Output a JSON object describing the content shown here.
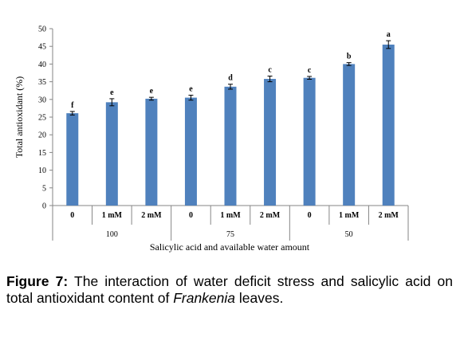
{
  "chart_data": {
    "type": "bar",
    "ylabel": "Total antioxidant (%)",
    "xlabel": "Salicylic  acid and available  water amount",
    "ylim": [
      0,
      50
    ],
    "yticks": [
      "0",
      "5",
      "10",
      "15",
      "20",
      "25",
      "30",
      "35",
      "40",
      "45",
      "50"
    ],
    "categories": [
      "0",
      "1 mM",
      "2 mM",
      "0",
      "1 mM",
      "2 mM",
      "0",
      "1 mM",
      "2 mM"
    ],
    "groups": [
      "100",
      "75",
      "50"
    ],
    "values": [
      26.1,
      29.2,
      30.2,
      30.5,
      33.6,
      35.8,
      36.1,
      40.0,
      45.5
    ],
    "errors": [
      0.5,
      1.0,
      0.4,
      0.7,
      0.7,
      0.8,
      0.4,
      0.4,
      1.1
    ],
    "letters": [
      "f",
      "e",
      "e",
      "e",
      "d",
      "c",
      "c",
      "b",
      "a"
    ],
    "bar_color": "#4f81bd",
    "grid": false,
    "legend": "none"
  },
  "caption": {
    "label": "Figure 7:",
    "text": "The interaction of water deficit stress and salicylic acid on total antioxidant content of",
    "italic": "Frankenia",
    "end": "leaves."
  }
}
